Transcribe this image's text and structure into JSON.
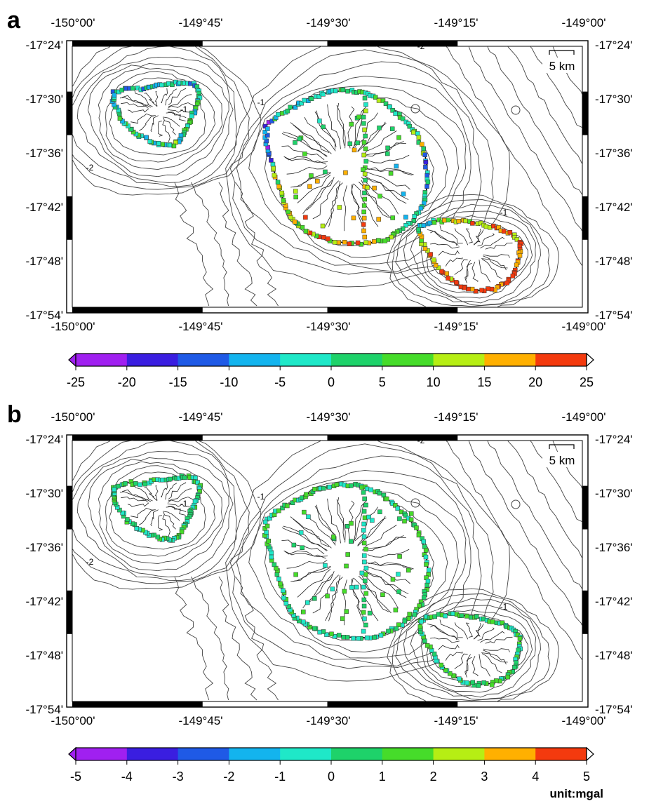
{
  "panels": [
    {
      "letter": "a",
      "lon_labels": [
        "-150°00'",
        "-149°45'",
        "-149°30'",
        "-149°15'",
        "-149°00'"
      ],
      "lat_labels": [
        "-17°24'",
        "-17°30'",
        "-17°36'",
        "-17°42'",
        "-17°48'",
        "-17°54'"
      ],
      "scalebar_label": "5 km",
      "contour_labels": [
        "-1",
        "-1",
        "-2",
        "-2",
        "-1"
      ],
      "colorbar": {
        "ticks": [
          "-25",
          "-20",
          "-15",
          "-10",
          "-5",
          "0",
          "5",
          "10",
          "15",
          "20",
          "25"
        ],
        "unit": ""
      }
    },
    {
      "letter": "b",
      "lon_labels": [
        "-150°00'",
        "-149°45'",
        "-149°30'",
        "-149°15'",
        "-149°00'"
      ],
      "lat_labels": [
        "-17°24'",
        "-17°30'",
        "-17°36'",
        "-17°42'",
        "-17°48'",
        "-17°54'"
      ],
      "scalebar_label": "5 km",
      "contour_labels": [
        "-1",
        "-1",
        "-2",
        "-2",
        "-1"
      ],
      "colorbar": {
        "ticks": [
          "-5",
          "-4",
          "-3",
          "-2",
          "-1",
          "0",
          "1",
          "2",
          "3",
          "4",
          "5"
        ],
        "unit": "unit:mgal"
      }
    }
  ],
  "colormap": [
    "#a020f0",
    "#3a1ee0",
    "#1f5ae6",
    "#13b4ee",
    "#1fe8c8",
    "#1ed26a",
    "#46dc2a",
    "#b6ee14",
    "#ffb000",
    "#f43a0e"
  ],
  "colors": {
    "coast": "#000000",
    "contour": "#444444"
  }
}
